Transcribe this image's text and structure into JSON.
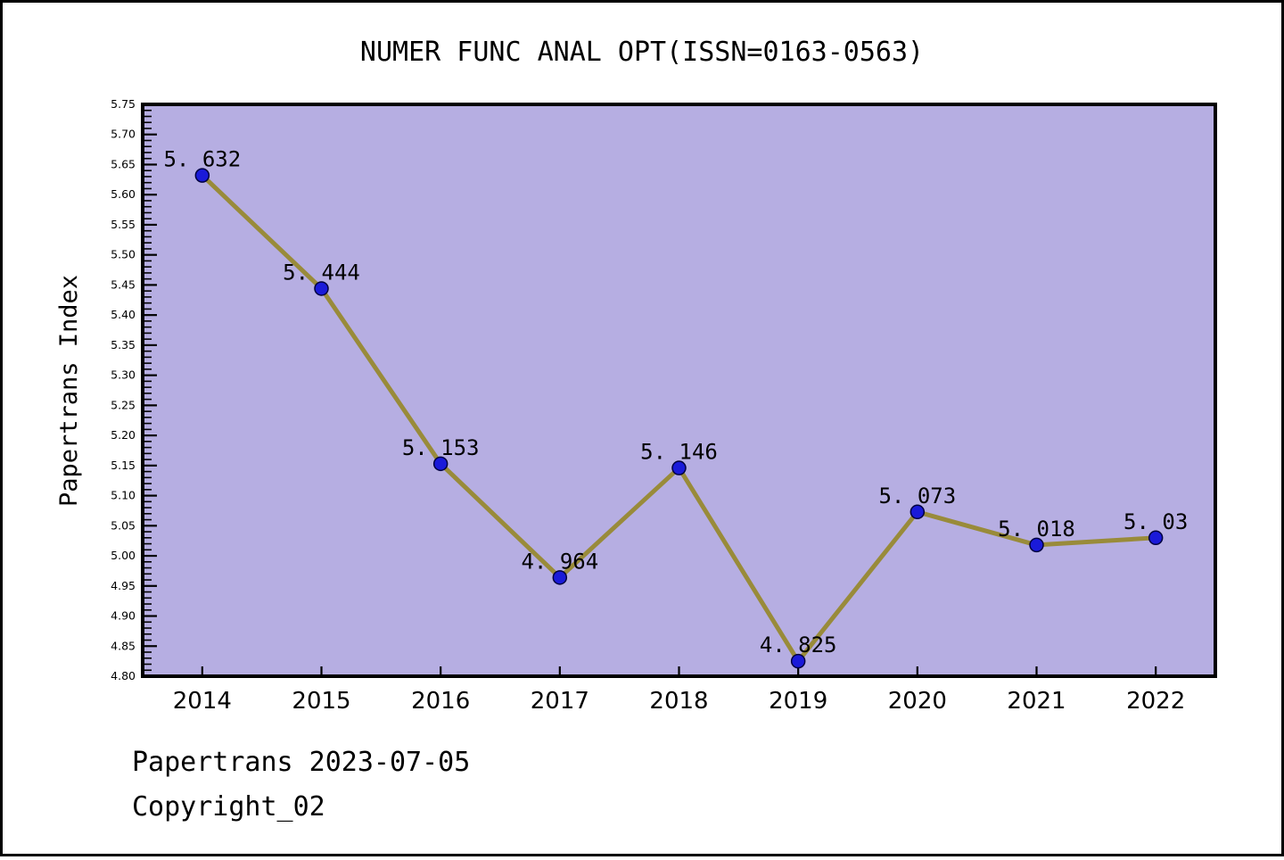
{
  "figure": {
    "background": "#ffffff",
    "frame_color": "#000000"
  },
  "chart_data": {
    "type": "line",
    "title": "NUMER FUNC ANAL OPT(ISSN=0163-0563)",
    "xlabel": "",
    "ylabel": "Papertrans Index",
    "x": [
      2014,
      2015,
      2016,
      2017,
      2018,
      2019,
      2020,
      2021,
      2022
    ],
    "x_tick_labels": [
      "2014",
      "2015",
      "2016",
      "2017",
      "2018",
      "2019",
      "2020",
      "2021",
      "2022"
    ],
    "series": [
      {
        "name": "Papertrans Index",
        "values": [
          5.632,
          5.444,
          5.153,
          4.964,
          5.146,
          4.825,
          5.073,
          5.018,
          5.03
        ]
      }
    ],
    "point_labels": [
      "5. 632",
      "5. 444",
      "5. 153",
      "4. 964",
      "5. 146",
      "4. 825",
      "5. 073",
      "5. 018",
      "5. 03"
    ],
    "ylim": [
      4.8,
      5.75
    ],
    "xlim": [
      2013.5,
      2022.5
    ],
    "y_major_step": 0.05,
    "y_minor_step": 0.01,
    "y_tick_labels": [
      "4.80",
      "4.85",
      "4.90",
      "4.95",
      "5.00",
      "5.05",
      "5.10",
      "5.15",
      "5.20",
      "5.25",
      "5.30",
      "5.35",
      "5.40",
      "5.45",
      "5.50",
      "5.55",
      "5.60",
      "5.65",
      "5.70",
      "5.75"
    ],
    "grid": false,
    "legend": null,
    "colors": {
      "plot_bg": "#b6aee2",
      "line": "#998b3a",
      "marker_fill": "#1a1ad9",
      "marker_edge": "#000040",
      "frame": "#000000",
      "text": "#000000"
    }
  },
  "footer": {
    "line1": "Papertrans 2023-07-05",
    "line2": "Copyright_02"
  }
}
